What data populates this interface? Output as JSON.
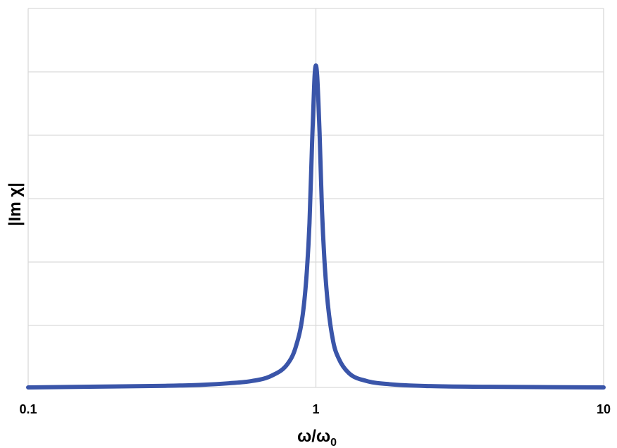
{
  "chart_data": {
    "type": "line",
    "title": "",
    "xlabel": "ω/ω",
    "xlabel_subscript": "0",
    "ylabel": "|Im χ|",
    "x_scale": "log",
    "xlim": [
      0.1,
      10
    ],
    "ylim": [
      0,
      10
    ],
    "x_ticks": [
      {
        "value": 0.1,
        "label": "0.1"
      },
      {
        "value": 1,
        "label": "1"
      },
      {
        "value": 10,
        "label": "10"
      }
    ],
    "y_ticks_labeled": false,
    "grid": true,
    "legend": "none",
    "colors": {
      "series": "#3A55A9",
      "grid": "#D9D9D9"
    },
    "series": [
      {
        "x": [
          0.1,
          0.2,
          0.3,
          0.4,
          0.5,
          0.6,
          0.7,
          0.8,
          0.85,
          0.9,
          0.93,
          0.95,
          0.97,
          0.98,
          0.99,
          1.0,
          1.01,
          1.02,
          1.03,
          1.05,
          1.07,
          1.1,
          1.15,
          1.2,
          1.3,
          1.5,
          1.8,
          2.5,
          4,
          10
        ],
        "y": [
          0.0,
          0.03,
          0.05,
          0.08,
          0.13,
          0.2,
          0.36,
          0.75,
          1.24,
          2.26,
          3.6,
          5.1,
          7.6,
          8.7,
          9.7,
          10.0,
          9.7,
          8.9,
          7.9,
          5.5,
          4.0,
          2.6,
          1.4,
          0.9,
          0.45,
          0.2,
          0.1,
          0.04,
          0.02,
          0.0
        ]
      }
    ]
  }
}
